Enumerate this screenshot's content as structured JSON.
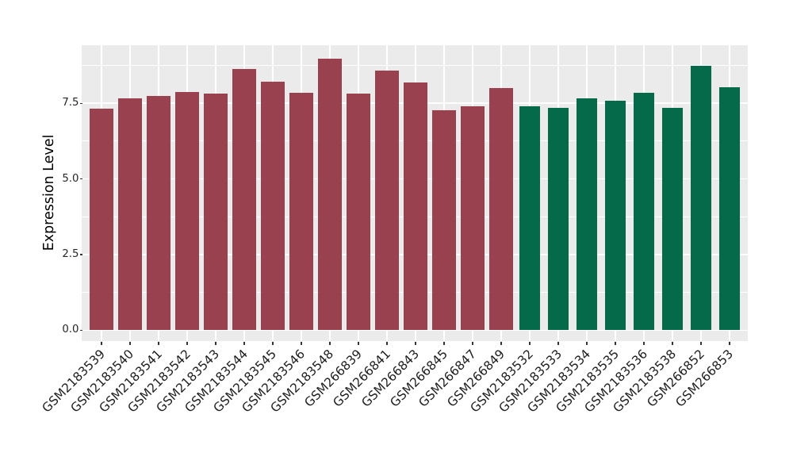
{
  "chart_data": {
    "type": "bar",
    "title": "",
    "xlabel": "",
    "ylabel": "Expression Level",
    "ylim": [
      0,
      9.4
    ],
    "yticks": [
      0,
      2.5,
      5.0,
      7.5
    ],
    "ytick_labels": [
      "0.0",
      "2.5",
      "5.0",
      "7.5"
    ],
    "minor_gridlines": [
      1.25,
      3.75,
      6.25,
      8.75
    ],
    "grid": "white major+minor horizontal lines and white vertical lines at each category, on light gray panel (ggplot style)",
    "legend_position": "none",
    "categories": [
      "GSM2183539",
      "GSM2183540",
      "GSM2183541",
      "GSM2183542",
      "GSM2183543",
      "GSM2183544",
      "GSM2183545",
      "GSM2183546",
      "GSM2183548",
      "GSM266839",
      "GSM266841",
      "GSM266843",
      "GSM266845",
      "GSM266847",
      "GSM266849",
      "GSM2183532",
      "GSM2183533",
      "GSM2183534",
      "GSM2183535",
      "GSM2183536",
      "GSM2183538",
      "GSM266852",
      "GSM266853"
    ],
    "values": [
      7.33,
      7.66,
      7.74,
      7.87,
      7.81,
      8.62,
      8.21,
      7.84,
      8.96,
      7.81,
      8.57,
      8.18,
      7.27,
      7.4,
      8.0,
      7.4,
      7.34,
      7.66,
      7.58,
      7.84,
      7.34,
      8.73,
      8.02
    ],
    "groups": [
      {
        "name": "group-1",
        "color": "#9A4150",
        "start": 0,
        "count": 15
      },
      {
        "name": "group-2",
        "color": "#056A49",
        "start": 15,
        "count": 8
      }
    ]
  },
  "colors": {
    "panel_background": "#EBEBEB",
    "gridline": "#FFFFFF",
    "tick_text": "#262626",
    "axis_title": "#000000",
    "figure_background": "#FFFFFF"
  }
}
